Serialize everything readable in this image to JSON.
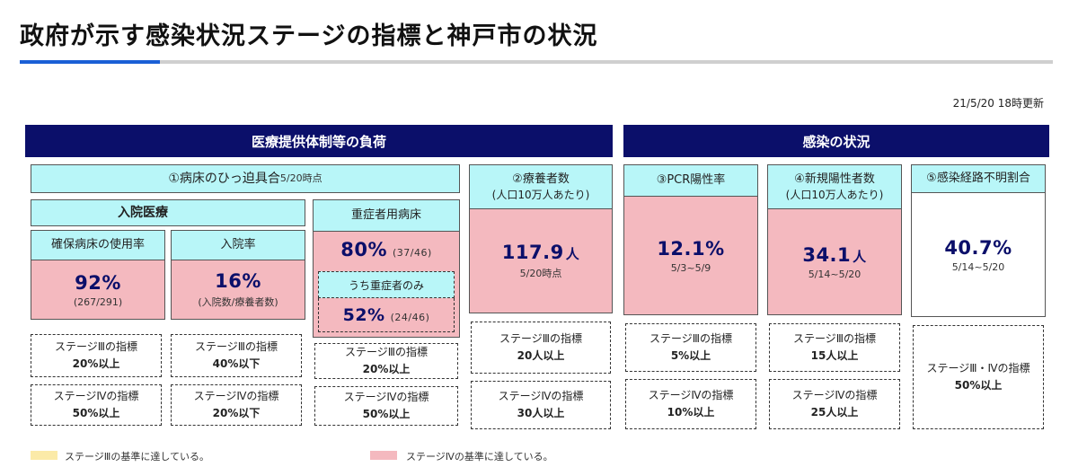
{
  "title": "政府が示す感染状況ステージの指標と神戸市の状況",
  "updated": "21/5/20 18時更新",
  "sections": {
    "medical": "医療提供体制等の負荷",
    "infection": "感染の状況"
  },
  "beds": {
    "header_label": "①病床のひっ迫具合",
    "header_date": "5/20時点",
    "inpatient_label": "入院医療",
    "usage_label": "確保病床の使用率",
    "usage_value": "92%",
    "usage_sub": "(267/291)",
    "rate_label": "入院率",
    "rate_value": "16%",
    "rate_sub": "(入院数/療養者数)",
    "severe_label": "重症者用病床",
    "severe_value": "80%",
    "severe_sub": "(37/46)",
    "severe_only_label": "うち重症者のみ",
    "severe_only_value": "52%",
    "severe_only_sub": "(24/46)"
  },
  "recuperating": {
    "label_1": "②療養者数",
    "label_2": "(人口10万人あたり)",
    "value": "117.9",
    "unit": "人",
    "date": "5/20時点"
  },
  "pcr": {
    "label": "③PCR陽性率",
    "value": "12.1%",
    "date": "5/3~5/9"
  },
  "new_cases": {
    "label_1": "④新規陽性者数",
    "label_2": "(人口10万人あたり)",
    "value": "34.1",
    "unit": "人",
    "date": "5/14~5/20"
  },
  "unknown_route": {
    "label": "⑤感染経路不明割合",
    "value": "40.7%",
    "date": "5/14~5/20"
  },
  "stages": {
    "s3_label": "ステージⅢの指標",
    "s4_label": "ステージⅣの指標",
    "s34_label": "ステージⅢ・Ⅳの指標",
    "usage_s3": "20%以上",
    "usage_s4": "50%以上",
    "rate_s3": "40%以下",
    "rate_s4": "20%以下",
    "severe_s3": "20%以上",
    "severe_s4": "50%以上",
    "recup_s3": "20人以上",
    "recup_s4": "30人以上",
    "pcr_s3": "5%以上",
    "pcr_s4": "10%以上",
    "cases_s3": "15人以上",
    "cases_s4": "25人以上",
    "route_s34": "50%以上"
  },
  "legend": {
    "stage3": "ステージⅢの基準に達している。",
    "stage4": "ステージⅣの基準に達している。",
    "stage3_color": "#fbeaa8",
    "stage4_color": "#f4b9bf"
  }
}
